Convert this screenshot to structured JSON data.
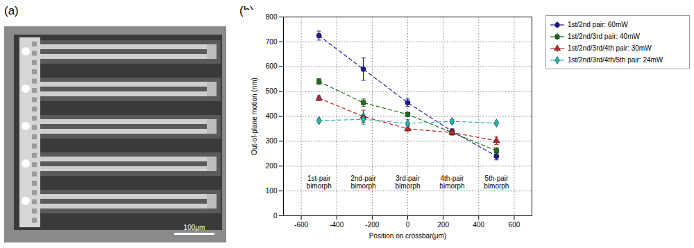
{
  "panels": [
    {
      "label": "(a)",
      "scale_bar": "100μm"
    },
    {
      "label": "(b)"
    }
  ],
  "chart_data": {
    "type": "line",
    "x_label": "Position on crossbar(μm)",
    "y_label": "Out-of-plane motion (nm)",
    "x": [
      -500,
      -250,
      0,
      250,
      500
    ],
    "xlim": [
      -700,
      700
    ],
    "xticks": [
      -600,
      -400,
      -200,
      0,
      200,
      400,
      600
    ],
    "ylim": [
      0,
      800
    ],
    "yticks": [
      0,
      100,
      200,
      300,
      400,
      500,
      600,
      700,
      800
    ],
    "grid": true,
    "legend": "right",
    "annotations": [
      {
        "text": "1st-pair bimorph",
        "x": -500,
        "y": 135
      },
      {
        "text": "2nd-pair bimorph",
        "x": -250,
        "y": 135
      },
      {
        "text": "3rd-pair bimorph",
        "x": 0,
        "y": 135
      },
      {
        "text": "4th-pair bimorph",
        "x": 250,
        "y": 135
      },
      {
        "text": "5th-pair bimorph",
        "x": 500,
        "y": 135
      }
    ],
    "series": [
      {
        "name": "1st/2nd pair: 60mW",
        "color": "#1c1c96",
        "marker": "circle",
        "line_style": "dashed",
        "values": [
          725,
          590,
          455,
          340,
          240
        ],
        "errors": [
          18,
          45,
          15,
          10,
          15
        ]
      },
      {
        "name": "1st/2nd/3rd pair: 40mW",
        "color": "#1e6e1e",
        "marker": "square",
        "line_style": "dashed",
        "values": [
          540,
          455,
          408,
          335,
          262
        ],
        "errors": [
          12,
          15,
          8,
          10,
          12
        ]
      },
      {
        "name": "1st/2nd/3rd/4th pair: 30mW",
        "color": "#c0282a",
        "marker": "triangle",
        "line_style": "dashed",
        "values": [
          473,
          400,
          350,
          335,
          302
        ],
        "errors": [
          10,
          25,
          12,
          10,
          15
        ]
      },
      {
        "name": "1st/2nd/3rd/4th/5th pair: 24mW",
        "color": "#22b4b4",
        "marker": "diamond",
        "line_style": "dashed",
        "values": [
          383,
          388,
          372,
          380,
          373
        ],
        "errors": [
          8,
          20,
          15,
          8,
          8
        ]
      }
    ]
  }
}
